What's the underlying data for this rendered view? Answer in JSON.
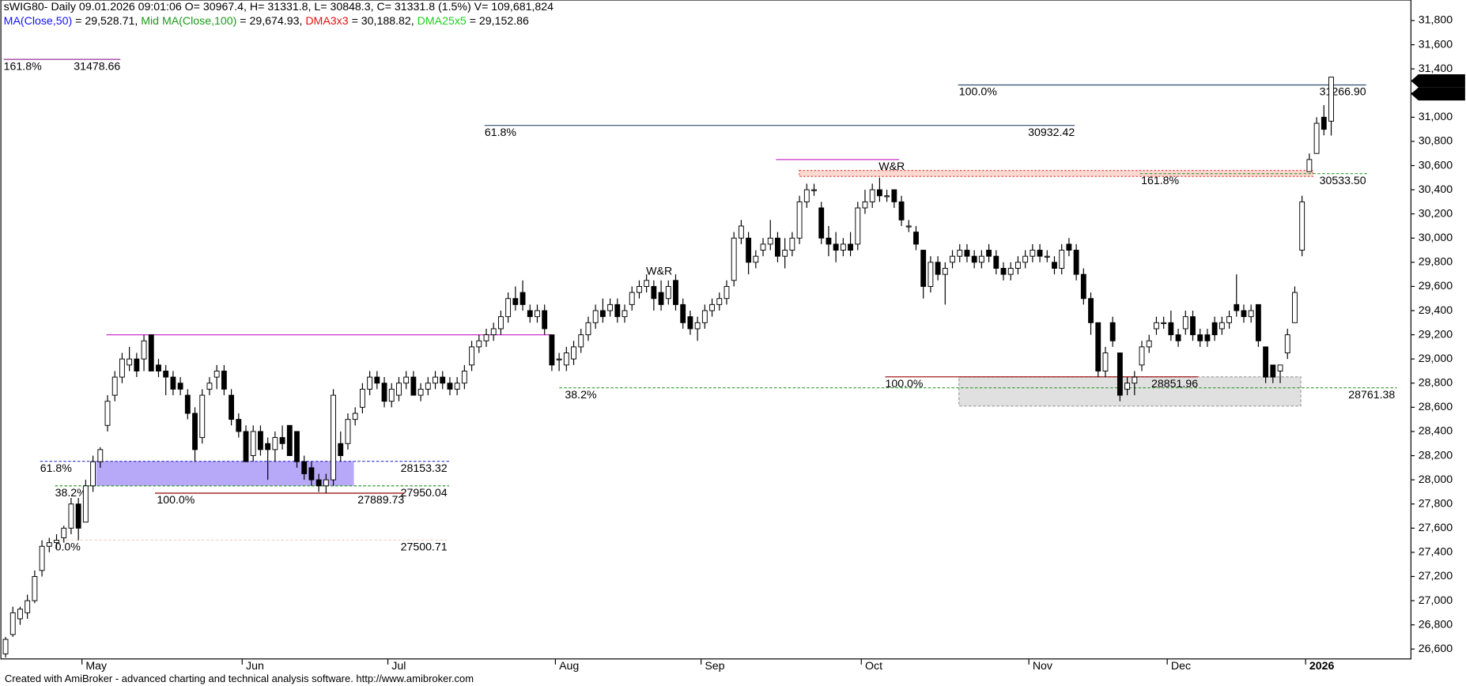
{
  "chart_data": {
    "type": "candlestick",
    "title": "sWIG80- Daily 09.01.2026 09:01:06 O= 30967.4, H= 31331.8, L= 30848.3, C= 31331.8 (1.5%) V= 109,681,824",
    "indicators": [
      {
        "name": "MA(Close,50)",
        "value": " = 29,528.71, ",
        "color": "#1010ff"
      },
      {
        "name": "Mid MA(Close,100)",
        "value": " = 29,674.93, ",
        "color": "#1a9a1a"
      },
      {
        "name": "DMA3x3",
        "value": " = 30,188.82, ",
        "color": "#e01010"
      },
      {
        "name": "DMA25x5",
        "value": " = 29,152.86",
        "color": "#20d020"
      }
    ],
    "categories": [
      null,
      null,
      null,
      null,
      null,
      null,
      null,
      null,
      null,
      null,
      null,
      "May",
      null,
      null,
      null,
      null,
      null,
      null,
      null,
      null,
      null,
      null,
      null,
      null,
      null,
      null,
      null,
      null,
      null,
      null,
      null,
      null,
      null,
      "Jun",
      null,
      null,
      null,
      null,
      null,
      null,
      null,
      null,
      null,
      null,
      null,
      null,
      null,
      null,
      null,
      null,
      null,
      null,
      null,
      "Jul",
      null,
      null,
      null,
      null,
      null,
      null,
      null,
      null,
      null,
      null,
      null,
      null,
      null,
      null,
      null,
      null,
      null,
      null,
      null,
      null,
      null,
      null,
      "Aug",
      null,
      null,
      null,
      null,
      null,
      null,
      null,
      null,
      null,
      null,
      null,
      null,
      null,
      null,
      null,
      null,
      null,
      null,
      null,
      "Sep",
      null,
      null,
      null,
      null,
      null,
      null,
      null,
      null,
      null,
      null,
      null,
      null,
      null,
      null,
      null,
      null,
      null,
      null,
      null,
      null,
      null,
      "Oct",
      null,
      null,
      null,
      null,
      null,
      null,
      null,
      null,
      null,
      null,
      null,
      null,
      null,
      null,
      null,
      null,
      null,
      null,
      null,
      null,
      null,
      null,
      "Nov",
      null,
      null,
      null,
      null,
      null,
      null,
      null,
      null,
      null,
      null,
      null,
      null,
      null,
      null,
      null,
      null,
      null,
      null,
      "Dec",
      null,
      null,
      null,
      null,
      null,
      null,
      null,
      null,
      null,
      null,
      null,
      null,
      null,
      null,
      null,
      null,
      null,
      null,
      "2026",
      null,
      null,
      null
    ],
    "open": [
      26560,
      26720,
      26850,
      26900,
      27000,
      27250,
      27450,
      27480,
      27520,
      27600,
      27800,
      27650,
      27950,
      28150,
      28450,
      28700,
      28850,
      28950,
      29000,
      29000,
      29200,
      28950,
      28900,
      28850,
      28800,
      28700,
      28550,
      28350,
      28750,
      28850,
      28900,
      28700,
      28500,
      28400,
      28200,
      28400,
      28300,
      28250,
      28350,
      28450,
      28400,
      28150,
      28100,
      28000,
      27950,
      28000,
      28300,
      28300,
      28500,
      28600,
      28750,
      28850,
      28800,
      28650,
      28700,
      28800,
      28850,
      28700,
      28750,
      28800,
      28850,
      28800,
      28750,
      28800,
      28950,
      29100,
      29150,
      29200,
      29250,
      29350,
      29500,
      29550,
      29400,
      29350,
      29400,
      29200,
      29000,
      28950,
      29000,
      29100,
      29200,
      29300,
      29400,
      29400,
      29450,
      29350,
      29450,
      29550,
      29600,
      29600,
      29550,
      29500,
      29650,
      29450,
      29350,
      29250,
      29300,
      29400,
      29450,
      29500,
      29650,
      30000,
      30000,
      29800,
      29900,
      29950,
      30000,
      29850,
      29900,
      30000,
      30300,
      30400,
      30250,
      30000,
      29950,
      29900,
      29950,
      29950,
      30250,
      30300,
      30400,
      30350,
      30400,
      30300,
      30100,
      30050,
      29900,
      29600,
      29800,
      29700,
      29800,
      29850,
      29900,
      29850,
      29800,
      29900,
      29850,
      29750,
      29700,
      29750,
      29800,
      29850,
      29900,
      29850,
      29800,
      29750,
      29950,
      29900,
      29700,
      29500,
      29300,
      28900,
      29300,
      29050,
      28750,
      28800,
      28950,
      29100,
      29250,
      29300,
      29300,
      29200,
      29250,
      29350,
      29200,
      29200,
      29300,
      29250,
      29300,
      29450,
      29400,
      29350,
      29450,
      29100,
      28950,
      28900,
      29050,
      29300,
      29900,
      30550,
      30700,
      31000,
      30967.4
    ],
    "high": [
      26700,
      26950,
      26950,
      27050,
      27250,
      27500,
      27520,
      27550,
      27620,
      27850,
      27850,
      28000,
      28200,
      28270,
      28700,
      28900,
      29050,
      29100,
      29050,
      29200,
      29200,
      29000,
      28950,
      28900,
      28850,
      28750,
      28600,
      28750,
      28850,
      28950,
      28950,
      28750,
      28550,
      28450,
      28450,
      28450,
      28350,
      28400,
      28450,
      28450,
      28400,
      28200,
      28150,
      28050,
      28050,
      28750,
      28400,
      28550,
      28600,
      28800,
      28900,
      28900,
      28850,
      28800,
      28850,
      28900,
      28900,
      28800,
      28850,
      28900,
      28900,
      28850,
      28850,
      28950,
      29150,
      29200,
      29250,
      29300,
      29400,
      29550,
      29600,
      29650,
      29450,
      29450,
      29450,
      29200,
      29050,
      29100,
      29150,
      29250,
      29350,
      29450,
      29500,
      29500,
      29500,
      29450,
      29600,
      29650,
      29700,
      29650,
      29650,
      29650,
      29700,
      29500,
      29400,
      29350,
      29450,
      29500,
      29550,
      29650,
      30050,
      30150,
      30050,
      29900,
      30000,
      30150,
      30050,
      30000,
      30050,
      30350,
      30450,
      30450,
      30300,
      30100,
      30050,
      30000,
      30050,
      30300,
      30400,
      30450,
      30500,
      30400,
      30400,
      30350,
      30150,
      30100,
      29900,
      29850,
      29850,
      29800,
      29900,
      29950,
      29950,
      29900,
      29900,
      29950,
      29900,
      29800,
      29800,
      29850,
      29900,
      29950,
      29950,
      29900,
      29850,
      29950,
      30000,
      29950,
      29750,
      29550,
      29300,
      29100,
      29350,
      29050,
      28850,
      28900,
      29150,
      29200,
      29350,
      29350,
      29400,
      29250,
      29400,
      29400,
      29250,
      29250,
      29350,
      29350,
      29400,
      29700,
      29450,
      29450,
      29450,
      29100,
      28950,
      28950,
      29250,
      29600,
      30350,
      30700,
      31000,
      31100,
      31331.8
    ],
    "low": [
      26530,
      26700,
      26800,
      26850,
      26980,
      27200,
      27400,
      27430,
      27480,
      27550,
      27500,
      27650,
      27900,
      28100,
      28400,
      28650,
      28800,
      28900,
      28850,
      28900,
      28900,
      28850,
      28700,
      28700,
      28700,
      28500,
      28150,
      28300,
      28700,
      28750,
      28700,
      28450,
      28350,
      28150,
      28150,
      28200,
      28000,
      28150,
      28250,
      28200,
      28100,
      28000,
      27950,
      27900,
      27890,
      27950,
      28150,
      28250,
      28450,
      28550,
      28700,
      28750,
      28600,
      28600,
      28650,
      28750,
      28700,
      28650,
      28700,
      28750,
      28750,
      28700,
      28700,
      28750,
      28900,
      29050,
      29100,
      29150,
      29200,
      29300,
      29400,
      29400,
      29300,
      29300,
      29200,
      28900,
      28900,
      28900,
      28950,
      29050,
      29150,
      29250,
      29300,
      29350,
      29300,
      29300,
      29400,
      29500,
      29550,
      29400,
      29400,
      29450,
      29400,
      29250,
      29200,
      29150,
      29250,
      29350,
      29400,
      29450,
      29600,
      29950,
      29700,
      29750,
      29850,
      29900,
      29800,
      29750,
      29850,
      29950,
      30250,
      30350,
      29950,
      29850,
      29800,
      29850,
      29850,
      29900,
      30200,
      30250,
      30300,
      30300,
      30250,
      30100,
      30050,
      29900,
      29500,
      29550,
      29650,
      29450,
      29750,
      29800,
      29800,
      29750,
      29750,
      29800,
      29700,
      29650,
      29650,
      29700,
      29750,
      29800,
      29800,
      29800,
      29700,
      29700,
      29850,
      29650,
      29450,
      29200,
      28850,
      28850,
      29100,
      28650,
      28700,
      28700,
      28900,
      29050,
      29200,
      29250,
      29150,
      29100,
      29200,
      29150,
      29100,
      29100,
      29150,
      29200,
      29250,
      29350,
      29300,
      29300,
      29100,
      28800,
      28800,
      28800,
      29000,
      29300,
      29850,
      30550,
      30700,
      30850,
      30848.3
    ],
    "close": [
      26680,
      26900,
      26930,
      27000,
      27200,
      27450,
      27480,
      27500,
      27600,
      27800,
      27600,
      27950,
      28150,
      28250,
      28650,
      28850,
      29000,
      29000,
      28900,
      29150,
      28900,
      28900,
      28850,
      28750,
      28750,
      28550,
      28250,
      28700,
      28800,
      28900,
      28750,
      28500,
      28400,
      28150,
      28400,
      28250,
      28250,
      28350,
      28300,
      28200,
      28150,
      28050,
      28000,
      27950,
      28000,
      28700,
      28200,
      28500,
      28550,
      28750,
      28850,
      28800,
      28650,
      28750,
      28800,
      28850,
      28700,
      28750,
      28800,
      28850,
      28800,
      28750,
      28800,
      28900,
      29100,
      29150,
      29200,
      29250,
      29350,
      29500,
      29450,
      29450,
      29350,
      29400,
      29250,
      28950,
      29000,
      29050,
      29100,
      29200,
      29300,
      29400,
      29350,
      29450,
      29350,
      29400,
      29550,
      29600,
      29650,
      29500,
      29450,
      29600,
      29450,
      29300,
      29250,
      29300,
      29400,
      29450,
      29500,
      29600,
      30000,
      30100,
      29800,
      29850,
      29950,
      30000,
      29850,
      29900,
      30000,
      30300,
      30400,
      30400,
      30000,
      29950,
      29900,
      29950,
      29900,
      30250,
      30300,
      30400,
      30350,
      30350,
      30300,
      30150,
      30100,
      29950,
      29600,
      29800,
      29700,
      29750,
      29850,
      29900,
      29850,
      29800,
      29850,
      29850,
      29750,
      29700,
      29750,
      29800,
      29850,
      29900,
      29850,
      29850,
      29750,
      29900,
      29900,
      29700,
      29500,
      29300,
      28900,
      29050,
      29150,
      28700,
      28800,
      28850,
      29100,
      29150,
      29300,
      29300,
      29200,
      29150,
      29350,
      29200,
      29150,
      29150,
      29200,
      29300,
      29350,
      29400,
      29350,
      29400,
      29150,
      28850,
      28850,
      28950,
      29200,
      29550,
      30300,
      30650,
      30950,
      30900,
      31331.8
    ],
    "ylim": [
      26518,
      31970
    ],
    "yticks": [
      {
        "value": 26600,
        "label": "26,600"
      },
      {
        "value": 26800,
        "label": "26,800"
      },
      {
        "value": 27000,
        "label": "27,000"
      },
      {
        "value": 27200,
        "label": "27,200"
      },
      {
        "value": 27400,
        "label": "27,400"
      },
      {
        "value": 27600,
        "label": "27,600"
      },
      {
        "value": 27800,
        "label": "27,800"
      },
      {
        "value": 28000,
        "label": "28,000"
      },
      {
        "value": 28200,
        "label": "28,200"
      },
      {
        "value": 28400,
        "label": "28,400"
      },
      {
        "value": 28600,
        "label": "28,600"
      },
      {
        "value": 28800,
        "label": "28,800"
      },
      {
        "value": 29000,
        "label": "29,000"
      },
      {
        "value": 29200,
        "label": "29,200"
      },
      {
        "value": 29400,
        "label": "29,400"
      },
      {
        "value": 29600,
        "label": "29,600"
      },
      {
        "value": 29800,
        "label": "29,800"
      },
      {
        "value": 30000,
        "label": "30,000"
      },
      {
        "value": 30200,
        "label": "30,200"
      },
      {
        "value": 30400,
        "label": "30,400"
      },
      {
        "value": 30600,
        "label": "30,600"
      },
      {
        "value": 30800,
        "label": "30,800"
      },
      {
        "value": 31000,
        "label": "31,000"
      },
      {
        "value": 31200,
        "label": "31,200"
      },
      {
        "value": 31400,
        "label": "31,400"
      },
      {
        "value": 31600,
        "label": "31,600"
      },
      {
        "value": 31800,
        "label": "31,800"
      }
    ],
    "last_price": [
      {
        "value": 31331.8,
        "label": "31,331.8"
      },
      {
        "value": 31331.8,
        "label": "31,331.8"
      }
    ],
    "levels": [
      {
        "pct": "161.8%",
        "price": 31478.66,
        "color": "#993399"
      },
      {
        "pct": "100.0%",
        "price": 31266.9,
        "price_label": "31266.90",
        "color": "#2f4f6f"
      },
      {
        "pct": "61.8%",
        "price": 30932.42,
        "color": "#2f4f6f"
      },
      {
        "pct": "161.8%",
        "price": 30533.5,
        "price_label": "30533.50",
        "color": "#339933"
      },
      {
        "pct": "100.0%",
        "price": 28851.96,
        "color": "#990000"
      },
      {
        "pct": "38.2%",
        "price": 28761.38,
        "color": "#339933"
      },
      {
        "pct": "61.8%",
        "price": 28153.32,
        "color": "#3333cc"
      },
      {
        "pct": "38.2%",
        "price": 27950.04,
        "color": "#339933"
      },
      {
        "pct": "100.0%",
        "price": 27889.73,
        "color": "#990000"
      },
      {
        "pct": "0.0%",
        "price": 27500.71,
        "color": "#f2d2c8"
      }
    ],
    "zones": [
      {
        "top": 28153.32,
        "bottom": 27950.04,
        "color": "#b8a8f8"
      },
      {
        "top": 28851.96,
        "bottom": 28610,
        "color": "#e0e0e0"
      },
      {
        "top": 30560,
        "bottom": 30510,
        "color": "#fbd8d0"
      }
    ],
    "lines": [
      {
        "price": 29200,
        "color": "#cc33cc"
      },
      {
        "price": 30650,
        "color": "#cc33cc"
      }
    ],
    "markers": [
      {
        "text": "W&R",
        "color": "#3333ff"
      },
      {
        "text": "W&R",
        "color": "#ff6633"
      }
    ],
    "footer": "Created with AmiBroker - advanced charting and technical analysis software. http://www.amibroker.com"
  }
}
